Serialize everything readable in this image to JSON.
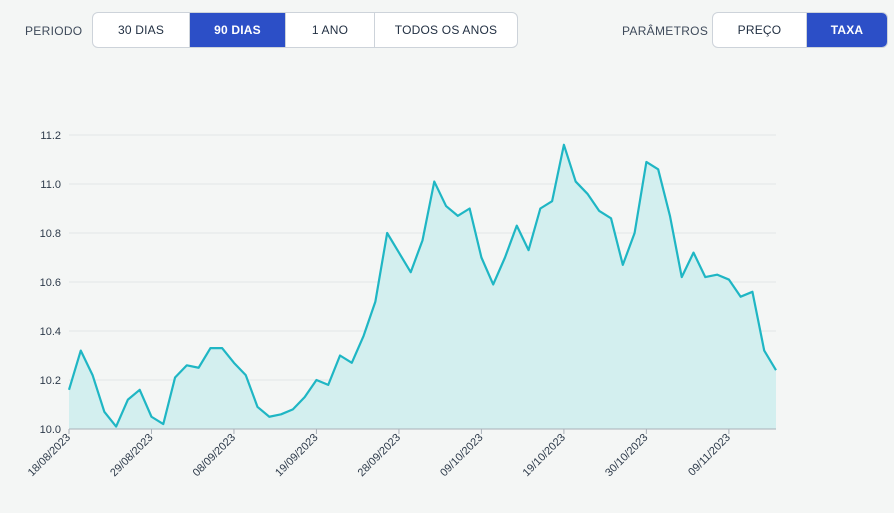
{
  "toolbar": {
    "period_label": "PERIODO",
    "period_options": [
      {
        "label": "30 DIAS",
        "active": false
      },
      {
        "label": "90 DIAS",
        "active": true
      },
      {
        "label": "1 ANO",
        "active": false
      },
      {
        "label": "TODOS OS ANOS",
        "active": false
      }
    ],
    "params_label": "PARÂMETROS",
    "param_options": [
      {
        "label": "PREÇO",
        "active": false
      },
      {
        "label": "TAXA",
        "active": true
      }
    ]
  },
  "colors": {
    "accent": "#2c4fc7",
    "line": "#1fb6c4",
    "area": "#d3efef",
    "grid": "#e2e5e8"
  },
  "chart_data": {
    "type": "area",
    "title": "",
    "xlabel": "",
    "ylabel": "",
    "ylim": [
      10.0,
      11.2
    ],
    "y_ticks": [
      "10.0",
      "10.2",
      "10.4",
      "10.6",
      "10.8",
      "11.0",
      "11.2"
    ],
    "x_tick_labels": [
      "18/08/2023",
      "29/08/2023",
      "08/09/2023",
      "19/09/2023",
      "28/09/2023",
      "09/10/2023",
      "19/10/2023",
      "30/10/2023",
      "09/11/2023"
    ],
    "x_tick_index": [
      0,
      7,
      14,
      21,
      28,
      35,
      42,
      49,
      56
    ],
    "grid": "horizontal",
    "series": [
      {
        "values": [
          10.16,
          10.32,
          10.22,
          10.07,
          10.01,
          10.12,
          10.16,
          10.05,
          10.02,
          10.21,
          10.26,
          10.25,
          10.33,
          10.33,
          10.27,
          10.22,
          10.09,
          10.05,
          10.06,
          10.08,
          10.13,
          10.2,
          10.18,
          10.3,
          10.27,
          10.38,
          10.52,
          10.8,
          10.72,
          10.64,
          10.77,
          11.01,
          10.91,
          10.87,
          10.9,
          10.7,
          10.59,
          10.7,
          10.83,
          10.73,
          10.9,
          10.93,
          11.16,
          11.01,
          10.96,
          10.89,
          10.86,
          10.67,
          10.8,
          11.09,
          11.06,
          10.87,
          10.62,
          10.72,
          10.62,
          10.63,
          10.61,
          10.54,
          10.56,
          10.32,
          10.24
        ]
      }
    ]
  }
}
